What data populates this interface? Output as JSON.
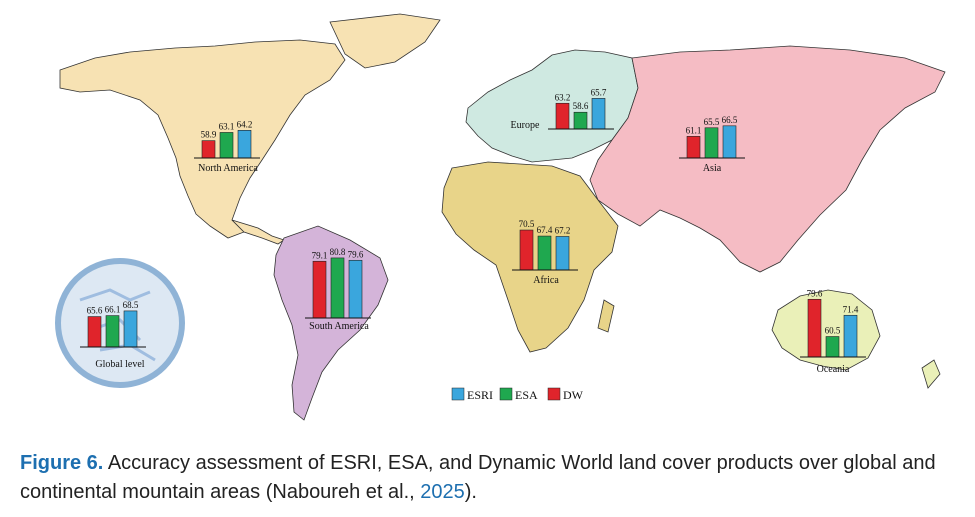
{
  "caption": {
    "figure_label": "Figure 6.",
    "text_before_year": " Accuracy assessment of ESRI, ESA, and Dynamic World land cover products over global and continental mountain areas (Naboureh et al., ",
    "year": "2025",
    "text_after_year": ")."
  },
  "colors": {
    "ESRI": "#3aa6dd",
    "ESA": "#1fa84f",
    "DW": "#e0242b",
    "north_america_land": "#f7e2b3",
    "europe_land": "#cfe9e1",
    "asia_land": "#f5bcc4",
    "africa_land": "#e8d489",
    "south_america_land": "#d4b4d9",
    "oceania_land": "#eaf0b8",
    "globe": "#dde8f3"
  },
  "chart_data": {
    "type": "bar",
    "series_order": [
      "ESRI",
      "ESA",
      "DW"
    ],
    "legend": {
      "placement": "bottom-center",
      "entries": [
        "ESRI",
        "ESA",
        "DW"
      ]
    },
    "bar_order_in_group": [
      "DW",
      "ESA",
      "ESRI"
    ],
    "regions": [
      {
        "name": "North America",
        "DW": 58.9,
        "ESA": 63.1,
        "ESRI": 64.2
      },
      {
        "name": "Europe",
        "DW": 63.2,
        "ESA": 58.6,
        "ESRI": 65.7
      },
      {
        "name": "Asia",
        "DW": 61.1,
        "ESA": 65.5,
        "ESRI": 66.5
      },
      {
        "name": "Africa",
        "DW": 70.5,
        "ESA": 67.4,
        "ESRI": 67.2
      },
      {
        "name": "South America",
        "DW": 79.1,
        "ESA": 80.8,
        "ESRI": 79.6
      },
      {
        "name": "Oceania",
        "DW": 79.6,
        "ESA": 60.5,
        "ESRI": 71.4
      },
      {
        "name": "Global level",
        "DW": 65.6,
        "ESA": 66.1,
        "ESRI": 68.5
      }
    ]
  }
}
